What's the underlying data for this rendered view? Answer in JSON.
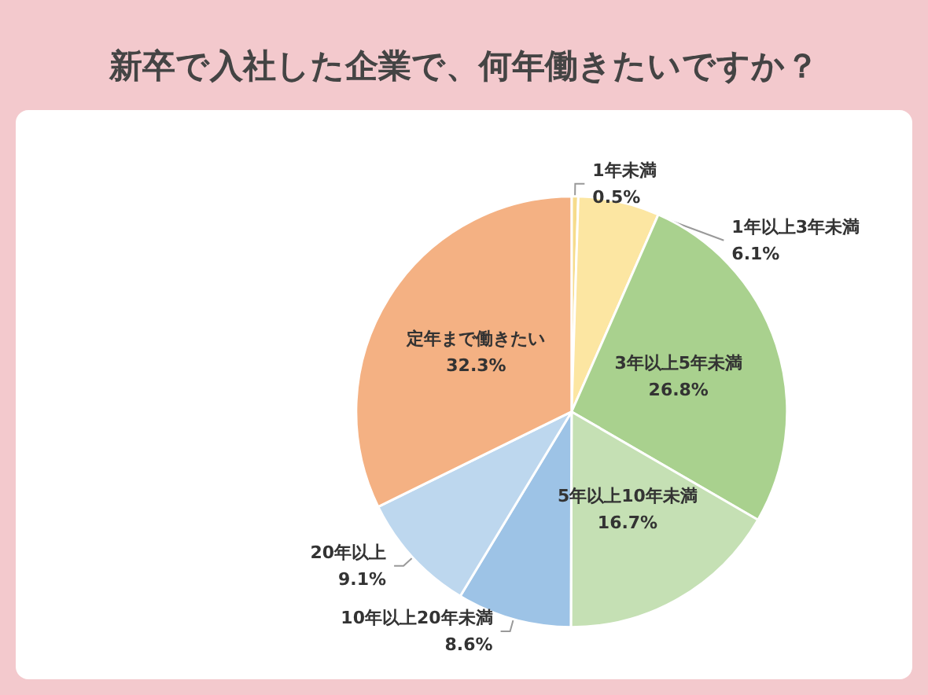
{
  "chart_data": {
    "type": "pie",
    "title": "新卒で入社した企業で、何年働きたいですか？",
    "categories": [
      "1年未満",
      "1年以上3年未満",
      "3年以上5年未満",
      "5年以上10年未満",
      "10年以上20年未満",
      "20年以上",
      "定年まで働きたい"
    ],
    "values": [
      0.5,
      6.1,
      26.8,
      16.7,
      8.6,
      9.1,
      32.3
    ],
    "colors": [
      "#f6dc8c",
      "#fce6a2",
      "#a9d18e",
      "#c5e0b4",
      "#9dc3e6",
      "#bdd7ee",
      "#f4b183"
    ],
    "value_labels": [
      "0.5%",
      "6.1%",
      "26.8%",
      "16.7%",
      "8.6%",
      "9.1%",
      "32.3%"
    ],
    "legend": false
  }
}
